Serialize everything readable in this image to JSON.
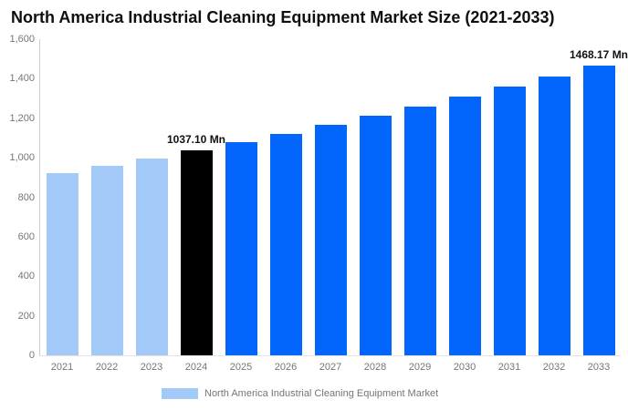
{
  "chart_data": {
    "type": "bar",
    "title": "North America Industrial Cleaning Equipment Market Size (2021-2033)",
    "categories": [
      "2021",
      "2022",
      "2023",
      "2024",
      "2025",
      "2026",
      "2027",
      "2028",
      "2029",
      "2030",
      "2031",
      "2032",
      "2033"
    ],
    "series": [
      {
        "name": "North America Industrial Cleaning Equipment Market",
        "values": [
          923.7,
          960.1,
          997.9,
          1037.1,
          1077.9,
          1120.4,
          1164.5,
          1210.4,
          1258.1,
          1307.6,
          1359.1,
          1412.7,
          1468.17
        ]
      }
    ],
    "value_unit": "Mn",
    "ylim": [
      0,
      1600
    ],
    "yticks": [
      {
        "v": 0,
        "label": "0"
      },
      {
        "v": 200,
        "label": "200"
      },
      {
        "v": 400,
        "label": "400"
      },
      {
        "v": 600,
        "label": "600"
      },
      {
        "v": 800,
        "label": "800"
      },
      {
        "v": 1000,
        "label": "1,000"
      },
      {
        "v": 1200,
        "label": "1,200"
      },
      {
        "v": 1400,
        "label": "1,400"
      },
      {
        "v": 1600,
        "label": "1,600"
      }
    ],
    "grid": "off",
    "legend_position": "bottom",
    "bar_colors": [
      "#A2C9F8",
      "#A2C9F8",
      "#A2C9F8",
      "#000000",
      "#0266FC",
      "#0266FC",
      "#0266FC",
      "#0266FC",
      "#0266FC",
      "#0266FC",
      "#0266FC",
      "#0266FC",
      "#0266FC"
    ],
    "point_labels": [
      {
        "category": "2024",
        "text": "1037.10 Mn"
      },
      {
        "category": "2033",
        "text": "1468.17 Mn"
      }
    ],
    "colors": {
      "historical_bar": "#A2C9F8",
      "base_year_bar": "#000000",
      "forecast_bar": "#0266FC",
      "axis_line": "#cccccc",
      "tick_label": "#757575",
      "title_text": "#0f0f0f"
    }
  },
  "legend": {
    "label": "North America Industrial Cleaning Equipment Market",
    "swatch_color": "#A2C9F8"
  }
}
